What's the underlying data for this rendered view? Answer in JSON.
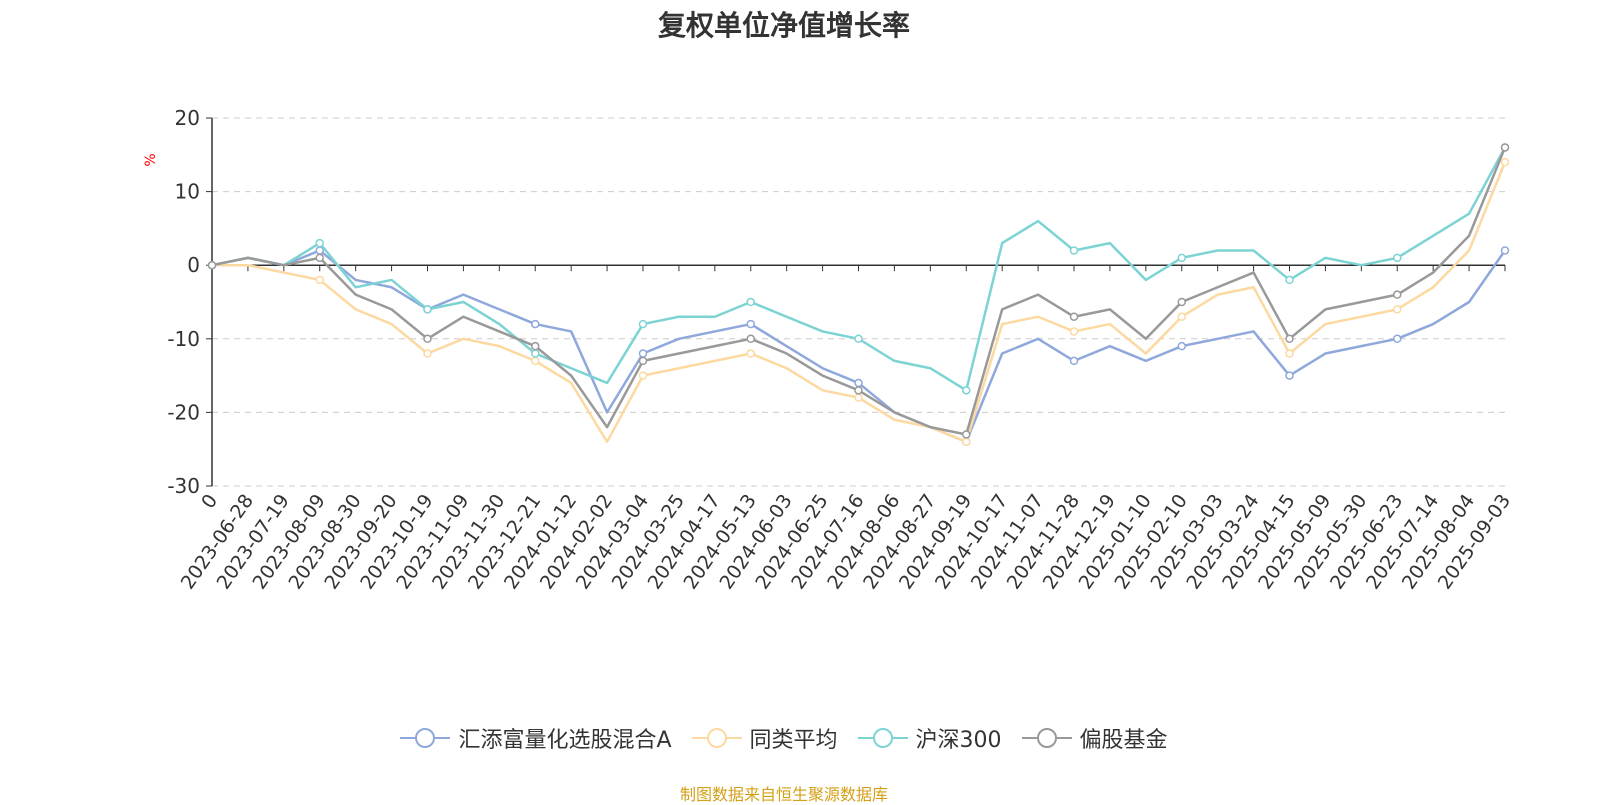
{
  "chart_data": {
    "type": "line",
    "title": "复权单位净值增长率",
    "ylabel": "%",
    "ylim": [
      -30,
      20
    ],
    "yticks": [
      20,
      10,
      0,
      -10,
      -20,
      -30
    ],
    "grid": true,
    "legend_position": "bottom",
    "x": [
      "0",
      "2023-06-28",
      "2023-07-19",
      "2023-08-09",
      "2023-08-30",
      "2023-09-20",
      "2023-10-19",
      "2023-11-09",
      "2023-11-30",
      "2023-12-21",
      "2024-01-12",
      "2024-02-02",
      "2024-03-04",
      "2024-03-25",
      "2024-04-17",
      "2024-05-13",
      "2024-06-03",
      "2024-06-25",
      "2024-07-16",
      "2024-08-06",
      "2024-08-27",
      "2024-09-19",
      "2024-10-17",
      "2024-11-07",
      "2024-11-28",
      "2024-12-19",
      "2025-01-10",
      "2025-02-10",
      "2025-03-03",
      "2025-03-24",
      "2025-04-15",
      "2025-05-09",
      "2025-05-30",
      "2025-06-23",
      "2025-07-14",
      "2025-08-04",
      "2025-09-03"
    ],
    "series": [
      {
        "name": "汇添富量化选股混合A",
        "color": "#8fa8dc",
        "values": [
          0,
          1,
          0,
          2,
          -2,
          -3,
          -6,
          -4,
          -6,
          -8,
          -9,
          -20,
          -12,
          -10,
          -9,
          -8,
          -11,
          -14,
          -16,
          -20,
          -22,
          -24,
          -12,
          -10,
          -13,
          -11,
          -13,
          -11,
          -10,
          -9,
          -15,
          -12,
          -11,
          -10,
          -8,
          -5,
          2
        ]
      },
      {
        "name": "同类平均",
        "color": "#fcd9a0",
        "values": [
          0,
          0,
          -1,
          -2,
          -6,
          -8,
          -12,
          -10,
          -11,
          -13,
          -16,
          -24,
          -15,
          -14,
          -13,
          -12,
          -14,
          -17,
          -18,
          -21,
          -22,
          -24,
          -8,
          -7,
          -9,
          -8,
          -12,
          -7,
          -4,
          -3,
          -12,
          -8,
          -7,
          -6,
          -3,
          2,
          14
        ]
      },
      {
        "name": "沪深300",
        "color": "#7dd3d3",
        "values": [
          0,
          1,
          0,
          3,
          -3,
          -2,
          -6,
          -5,
          -8,
          -12,
          -14,
          -16,
          -8,
          -7,
          -7,
          -5,
          -7,
          -9,
          -10,
          -13,
          -14,
          -17,
          3,
          6,
          2,
          3,
          -2,
          1,
          2,
          2,
          -2,
          1,
          0,
          1,
          4,
          7,
          16
        ]
      },
      {
        "name": "偏股基金",
        "color": "#999999",
        "values": [
          0,
          1,
          0,
          1,
          -4,
          -6,
          -10,
          -7,
          -9,
          -11,
          -15,
          -22,
          -13,
          -12,
          -11,
          -10,
          -12,
          -15,
          -17,
          -20,
          -22,
          -23,
          -6,
          -4,
          -7,
          -6,
          -10,
          -5,
          -3,
          -1,
          -10,
          -6,
          -5,
          -4,
          -1,
          4,
          16
        ]
      }
    ]
  },
  "footer": {
    "source": "制图数据来自恒生聚源数据库"
  }
}
